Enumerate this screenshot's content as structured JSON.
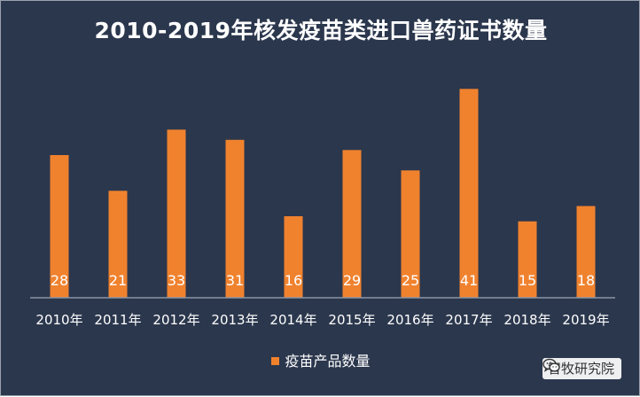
{
  "chart_data": {
    "type": "bar",
    "title": "2010-2019年核发疫苗类进口兽药证书数量",
    "categories": [
      "2010年",
      "2011年",
      "2012年",
      "2013年",
      "2014年",
      "2015年",
      "2016年",
      "2017年",
      "2018年",
      "2019年"
    ],
    "series": [
      {
        "name": "疫苗产品数量",
        "values": [
          28,
          21,
          33,
          31,
          16,
          29,
          25,
          41,
          15,
          18
        ]
      }
    ],
    "ylim": [
      0,
      44
    ],
    "grid": false,
    "legend": "bottom",
    "colors": {
      "background": "#2b374d",
      "bar": "#f0822e",
      "text": "#ffffff",
      "axis": "#8a95a5"
    }
  },
  "watermark": {
    "text": "智牧研究院",
    "icon": "wechat-icon"
  }
}
